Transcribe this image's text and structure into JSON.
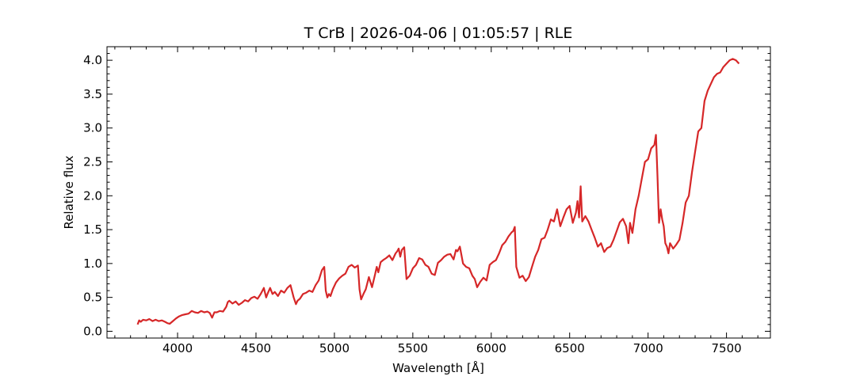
{
  "chart_data": {
    "type": "line",
    "title": "T CrB | 2026-04-06 | 01:05:57 | RLE",
    "xlabel": "Wavelength [Å]",
    "ylabel": "Relative flux",
    "xlim": [
      3550,
      7780
    ],
    "ylim": [
      -0.1,
      4.2
    ],
    "xticks": [
      4000,
      4500,
      5000,
      5500,
      6000,
      6500,
      7000,
      7500
    ],
    "xtick_labels": [
      "4000",
      "4500",
      "5000",
      "5500",
      "6000",
      "6500",
      "7000",
      "7500"
    ],
    "yticks": [
      0.0,
      0.5,
      1.0,
      1.5,
      2.0,
      2.5,
      3.0,
      3.5,
      4.0
    ],
    "ytick_labels": [
      "0.0",
      "0.5",
      "1.0",
      "1.5",
      "2.0",
      "2.5",
      "3.0",
      "3.5",
      "4.0"
    ],
    "x_minor_step": 100,
    "y_minor_step": 0.1,
    "grid": false,
    "series": [
      {
        "color": "#d62728",
        "x": [
          3745,
          3755,
          3765,
          3780,
          3800,
          3820,
          3840,
          3860,
          3880,
          3900,
          3920,
          3935,
          3950,
          3970,
          3990,
          4010,
          4030,
          4050,
          4070,
          4090,
          4110,
          4130,
          4150,
          4170,
          4190,
          4205,
          4220,
          4235,
          4250,
          4270,
          4290,
          4310,
          4320,
          4330,
          4350,
          4370,
          4390,
          4410,
          4430,
          4450,
          4470,
          4490,
          4510,
          4530,
          4550,
          4565,
          4575,
          4590,
          4605,
          4620,
          4640,
          4660,
          4680,
          4700,
          4720,
          4740,
          4755,
          4765,
          4780,
          4800,
          4820,
          4840,
          4860,
          4880,
          4900,
          4920,
          4935,
          4945,
          4955,
          4965,
          4975,
          4990,
          5010,
          5030,
          5050,
          5070,
          5090,
          5110,
          5130,
          5150,
          5160,
          5170,
          5185,
          5200,
          5220,
          5240,
          5260,
          5270,
          5280,
          5295,
          5310,
          5330,
          5350,
          5370,
          5390,
          5400,
          5410,
          5420,
          5430,
          5445,
          5460,
          5480,
          5500,
          5520,
          5540,
          5560,
          5580,
          5600,
          5620,
          5640,
          5660,
          5680,
          5700,
          5720,
          5740,
          5760,
          5775,
          5785,
          5800,
          5820,
          5840,
          5860,
          5880,
          5895,
          5910,
          5930,
          5950,
          5970,
          5990,
          6010,
          6030,
          6050,
          6070,
          6090,
          6110,
          6130,
          6140,
          6150,
          6160,
          6180,
          6200,
          6220,
          6240,
          6260,
          6280,
          6300,
          6320,
          6340,
          6360,
          6380,
          6400,
          6420,
          6440,
          6460,
          6480,
          6500,
          6520,
          6540,
          6550,
          6560,
          6570,
          6580,
          6600,
          6620,
          6640,
          6660,
          6680,
          6700,
          6720,
          6740,
          6760,
          6780,
          6800,
          6820,
          6840,
          6860,
          6875,
          6885,
          6900,
          6920,
          6940,
          6960,
          6980,
          7000,
          7020,
          7040,
          7050,
          7060,
          7070,
          7080,
          7090,
          7100,
          7110,
          7120,
          7130,
          7140,
          7160,
          7180,
          7200,
          7220,
          7240,
          7260,
          7280,
          7300,
          7320,
          7340,
          7360,
          7380,
          7400,
          7420,
          7440,
          7460,
          7480,
          7500,
          7520,
          7540,
          7560,
          7580
        ],
        "y": [
          0.1,
          0.16,
          0.14,
          0.17,
          0.16,
          0.18,
          0.15,
          0.17,
          0.15,
          0.16,
          0.14,
          0.12,
          0.11,
          0.15,
          0.19,
          0.22,
          0.24,
          0.25,
          0.26,
          0.3,
          0.28,
          0.27,
          0.3,
          0.28,
          0.29,
          0.27,
          0.2,
          0.28,
          0.28,
          0.3,
          0.29,
          0.36,
          0.43,
          0.45,
          0.41,
          0.44,
          0.39,
          0.42,
          0.46,
          0.44,
          0.49,
          0.51,
          0.48,
          0.55,
          0.64,
          0.5,
          0.56,
          0.64,
          0.55,
          0.58,
          0.52,
          0.6,
          0.57,
          0.64,
          0.68,
          0.5,
          0.4,
          0.45,
          0.48,
          0.55,
          0.57,
          0.6,
          0.58,
          0.68,
          0.75,
          0.9,
          0.95,
          0.6,
          0.5,
          0.55,
          0.52,
          0.62,
          0.72,
          0.78,
          0.82,
          0.85,
          0.95,
          0.98,
          0.94,
          0.97,
          0.62,
          0.47,
          0.55,
          0.62,
          0.8,
          0.65,
          0.85,
          0.95,
          0.87,
          1.02,
          1.05,
          1.08,
          1.12,
          1.05,
          1.15,
          1.18,
          1.22,
          1.1,
          1.2,
          1.24,
          0.77,
          0.82,
          0.93,
          0.98,
          1.08,
          1.06,
          0.98,
          0.95,
          0.85,
          0.83,
          1.01,
          1.05,
          1.1,
          1.13,
          1.14,
          1.06,
          1.2,
          1.18,
          1.25,
          1.0,
          0.95,
          0.93,
          0.82,
          0.77,
          0.65,
          0.73,
          0.79,
          0.75,
          0.98,
          1.02,
          1.05,
          1.15,
          1.27,
          1.32,
          1.4,
          1.46,
          1.48,
          1.54,
          0.95,
          0.79,
          0.82,
          0.74,
          0.8,
          0.95,
          1.1,
          1.2,
          1.36,
          1.38,
          1.5,
          1.65,
          1.62,
          1.8,
          1.55,
          1.68,
          1.8,
          1.85,
          1.6,
          1.75,
          1.92,
          1.68,
          2.14,
          1.62,
          1.7,
          1.62,
          1.5,
          1.38,
          1.25,
          1.3,
          1.17,
          1.23,
          1.25,
          1.35,
          1.48,
          1.61,
          1.66,
          1.55,
          1.3,
          1.6,
          1.45,
          1.8,
          2.0,
          2.25,
          2.5,
          2.54,
          2.7,
          2.75,
          2.9,
          2.3,
          1.6,
          1.8,
          1.65,
          1.55,
          1.3,
          1.25,
          1.15,
          1.3,
          1.22,
          1.28,
          1.35,
          1.6,
          1.9,
          2.0,
          2.35,
          2.65,
          2.95,
          3.0,
          3.4,
          3.55,
          3.65,
          3.75,
          3.8,
          3.82,
          3.9,
          3.95,
          4.0,
          4.02,
          4.0,
          3.95
        ]
      }
    ]
  }
}
